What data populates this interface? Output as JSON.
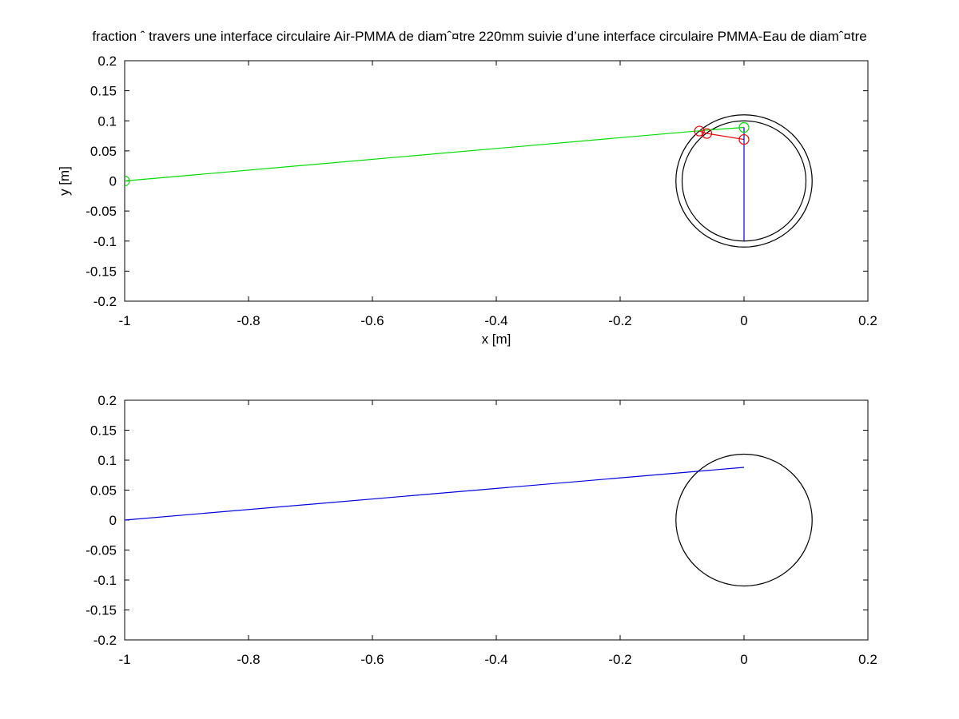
{
  "title": "fraction ˆ  travers une interface circulaire Air-PMMA de diamˆ¤tre 220mm suivie d’une interface circulaire PMMA-Eau de diamˆ¤tre",
  "colors": {
    "ray_green": "#00dd00",
    "ray_red": "#ee0000",
    "ray_blue": "#0000dd",
    "frame": "#000000"
  },
  "chart_data": [
    {
      "type": "line",
      "xlabel": "x [m]",
      "ylabel": "y [m]",
      "xlim": [
        -1,
        0.2
      ],
      "ylim": [
        -0.2,
        0.2
      ],
      "xticks": [
        -1,
        -0.8,
        -0.6,
        -0.4,
        -0.2,
        0,
        0.2
      ],
      "yticks": [
        -0.2,
        -0.15,
        -0.1,
        -0.05,
        0,
        0.05,
        0.1,
        0.15,
        0.2
      ],
      "xtick_labels": [
        "-1",
        "-0.8",
        "-0.6",
        "-0.4",
        "-0.2",
        "0",
        "0.2"
      ],
      "ytick_labels": [
        "-0.2",
        "-0.15",
        "-0.1",
        "-0.05",
        "0",
        "0.05",
        "0.1",
        "0.15",
        "0.2"
      ],
      "circles": [
        {
          "cx": 0,
          "cy": 0,
          "r": 0.11
        },
        {
          "cx": 0,
          "cy": 0,
          "r": 0.1
        }
      ],
      "series": [
        {
          "color": "green",
          "x": [
            -1,
            -0.055,
            0
          ],
          "y": [
            0,
            0.085,
            0.089
          ]
        },
        {
          "color": "red",
          "x": [
            -0.072,
            -0.06,
            0
          ],
          "y": [
            0.083,
            0.079,
            0.069
          ]
        },
        {
          "color": "blue",
          "x": [
            0,
            0
          ],
          "y": [
            0.089,
            -0.1
          ]
        }
      ],
      "markers": [
        {
          "color": "green",
          "x": -1,
          "y": 0
        },
        {
          "color": "green",
          "x": 0,
          "y": 0.089
        },
        {
          "color": "red",
          "x": -0.072,
          "y": 0.083
        },
        {
          "color": "red",
          "x": -0.06,
          "y": 0.079
        },
        {
          "color": "red",
          "x": 0,
          "y": 0.069
        }
      ]
    },
    {
      "type": "line",
      "xlabel": "",
      "ylabel": "",
      "xlim": [
        -1,
        0.2
      ],
      "ylim": [
        -0.2,
        0.2
      ],
      "xticks": [
        -1,
        -0.8,
        -0.6,
        -0.4,
        -0.2,
        0,
        0.2
      ],
      "yticks": [
        -0.2,
        -0.15,
        -0.1,
        -0.05,
        0,
        0.05,
        0.1,
        0.15,
        0.2
      ],
      "xtick_labels": [
        "-1",
        "-0.8",
        "-0.6",
        "-0.4",
        "-0.2",
        "0",
        "0.2"
      ],
      "ytick_labels": [
        "-0.2",
        "-0.15",
        "-0.1",
        "-0.05",
        "0",
        "0.05",
        "0.1",
        "0.15",
        "0.2"
      ],
      "circles": [
        {
          "cx": 0,
          "cy": 0,
          "r": 0.11
        }
      ],
      "series": [
        {
          "color": "blue",
          "x": [
            -1,
            0
          ],
          "y": [
            0,
            0.088
          ]
        }
      ],
      "markers": []
    }
  ]
}
